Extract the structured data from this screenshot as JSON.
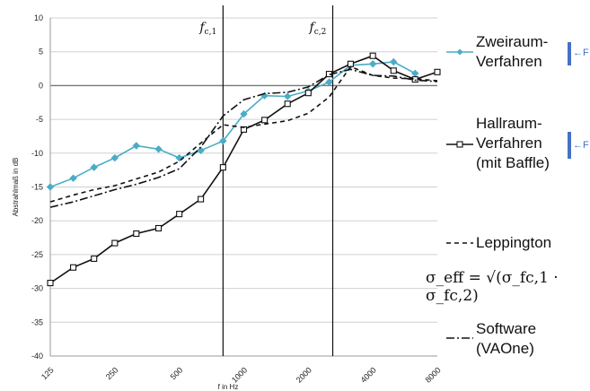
{
  "chart_data": {
    "type": "line",
    "ylabel": "Abstrahlmaß in dB",
    "xlabel": "f in Hz",
    "ylim": [
      -40,
      10
    ],
    "yticks": [
      10,
      5,
      0,
      -5,
      -10,
      -15,
      -20,
      -25,
      -30,
      -35,
      -40
    ],
    "xscale": "log",
    "xlim": [
      125,
      8000
    ],
    "xticks": [
      "125",
      "250",
      "500",
      "1000",
      "2000",
      "4000",
      "8000"
    ],
    "grid": "horizontal",
    "vlines": [
      {
        "name": "f_c,1",
        "x": 800
      },
      {
        "name": "f_c,2",
        "x": 2600
      }
    ],
    "series": [
      {
        "name": "Zweiraum-Verfahren",
        "color": "#4bacc6",
        "marker": "diamond",
        "style": "solid",
        "x": [
          125,
          160,
          200,
          250,
          315,
          400,
          500,
          630,
          800,
          1000,
          1250,
          1600,
          2000,
          2500,
          3150,
          4000,
          5000,
          6300
        ],
        "y": [
          -15.0,
          -13.7,
          -12.1,
          -10.7,
          -8.9,
          -9.4,
          -10.7,
          -9.6,
          -8.2,
          -4.2,
          -1.5,
          -1.6,
          -0.8,
          0.5,
          3.0,
          3.2,
          3.5,
          1.8
        ]
      },
      {
        "name": "Hallraum-Verfahren (mit Baffle)",
        "color": "#111111",
        "marker": "square",
        "style": "solid",
        "x": [
          125,
          160,
          200,
          250,
          315,
          400,
          500,
          630,
          800,
          1000,
          1250,
          1600,
          2000,
          2500,
          3150,
          4000,
          5000,
          6300,
          8000
        ],
        "y": [
          -29.2,
          -26.9,
          -25.6,
          -23.3,
          -21.9,
          -21.1,
          -19.0,
          -16.8,
          -12.1,
          -6.5,
          -5.1,
          -2.7,
          -1.1,
          1.7,
          3.2,
          4.4,
          2.2,
          0.9,
          2.0
        ]
      },
      {
        "name": "Leppington",
        "color": "#111111",
        "marker": "none",
        "style": "dashed",
        "x": [
          125,
          160,
          200,
          250,
          315,
          400,
          500,
          630,
          800,
          1000,
          1250,
          1600,
          2000,
          2500,
          3150,
          4000,
          5000,
          6300,
          8000
        ],
        "y": [
          -17.2,
          -16.2,
          -15.4,
          -14.8,
          -13.8,
          -12.8,
          -11.2,
          -8.5,
          -5.8,
          -6.2,
          -5.7,
          -5.2,
          -4.1,
          -1.7,
          2.8,
          1.5,
          1.1,
          1.0,
          0.7
        ]
      },
      {
        "name": "Software (VAOne)",
        "color": "#111111",
        "marker": "none",
        "style": "dashdot",
        "x": [
          125,
          160,
          200,
          250,
          315,
          400,
          500,
          630,
          800,
          1000,
          1250,
          1600,
          2000,
          2500,
          3150,
          4000,
          5000,
          6300,
          8000
        ],
        "y": [
          -18.0,
          -17.2,
          -16.3,
          -15.4,
          -14.6,
          -13.6,
          -12.3,
          -9.1,
          -4.5,
          -2.1,
          -1.2,
          -1.0,
          -0.2,
          1.6,
          2.4,
          1.5,
          1.4,
          0.8,
          0.6
        ]
      }
    ]
  },
  "legend": {
    "zweiraum": "Zweiraum-\nVerfahren",
    "hallraum": "Hallraum-\nVerfahren\n(mit Baffle)",
    "leppington": "Leppington",
    "software": "Software\n(VAOne)",
    "f_marker": "F"
  },
  "fc_labels": {
    "fc1_main": "f",
    "fc1_sub": "c,1",
    "fc2_main": "f",
    "fc2_sub": "c,2"
  },
  "formula": "σ_eff = √(σ_fc,1 · σ_fc,2)"
}
